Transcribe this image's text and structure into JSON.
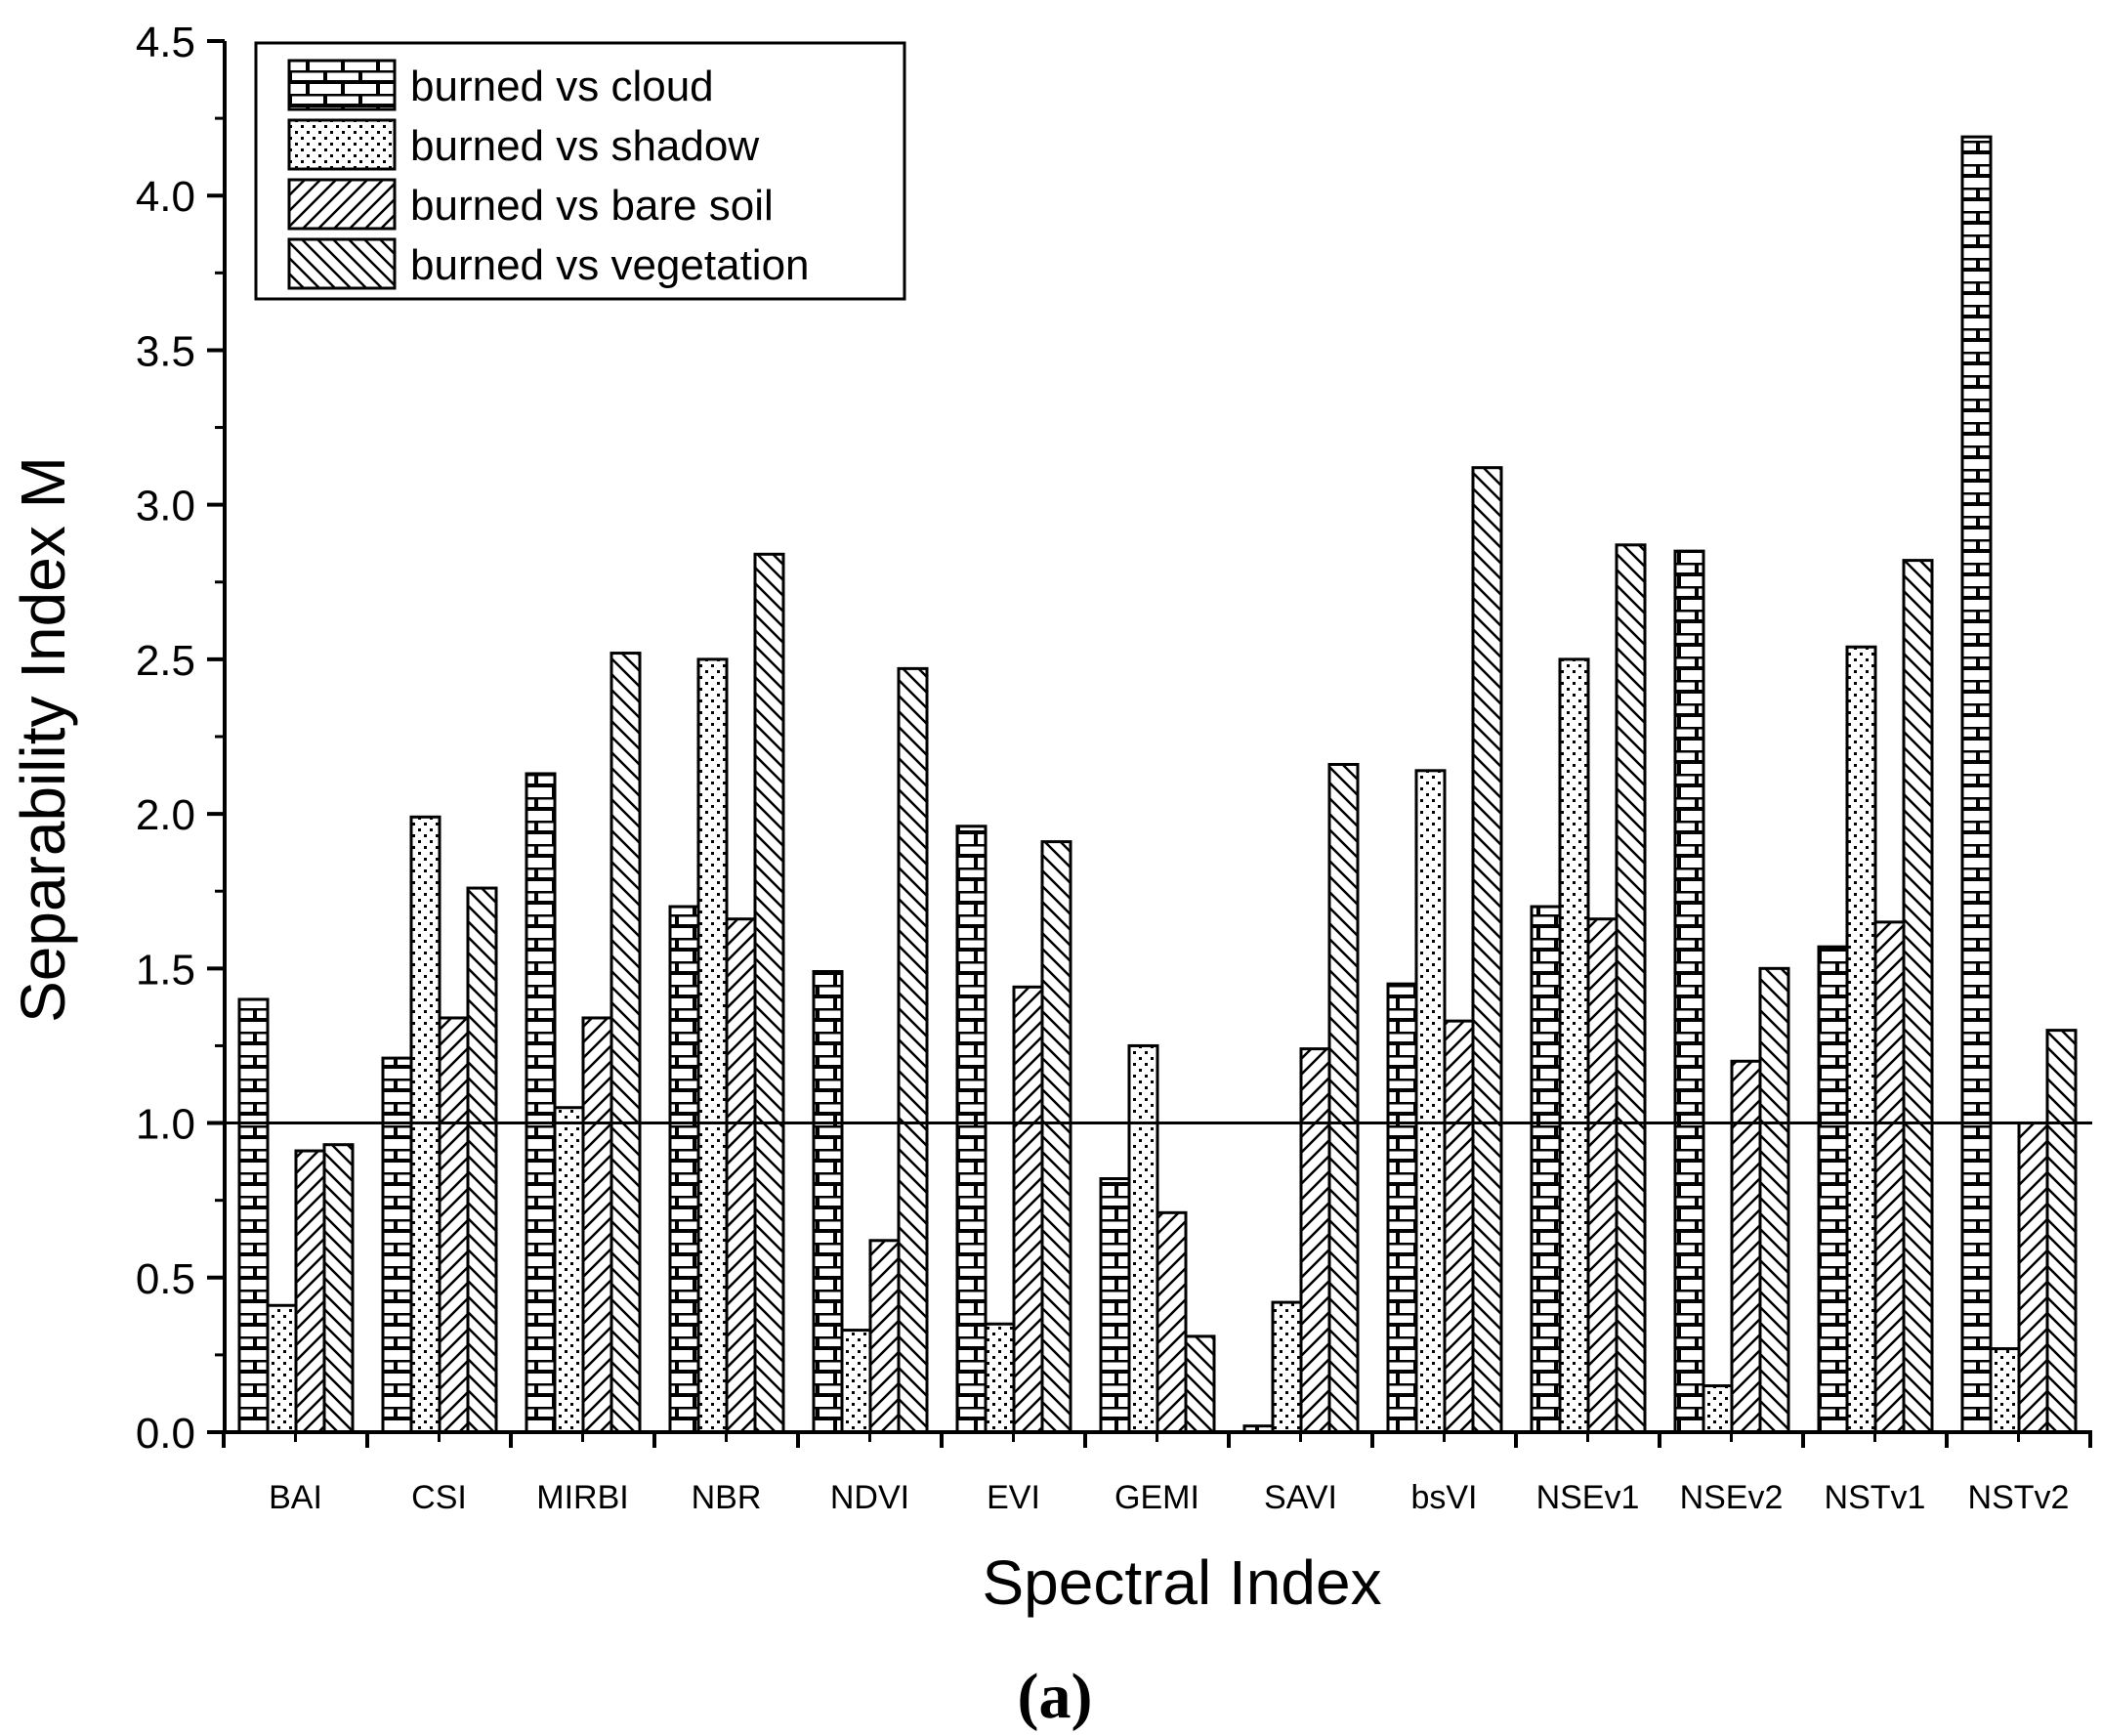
{
  "chart_data": {
    "type": "bar",
    "title": "",
    "xlabel": "Spectral Index",
    "ylabel": "Separability Index M",
    "caption": "(a)",
    "ylim": [
      0,
      4.5
    ],
    "yticks": [
      "0.0",
      "0.5",
      "1.0",
      "1.5",
      "2.0",
      "2.5",
      "3.0",
      "3.5",
      "4.0",
      "4.5"
    ],
    "reference_line": 1.0,
    "legend_position": "top-left",
    "categories": [
      "BAI",
      "CSI",
      "MIRBI",
      "NBR",
      "NDVI",
      "EVI",
      "GEMI",
      "SAVI",
      "bsVI",
      "NSEv1",
      "NSEv2",
      "NSTv1",
      "NSTv2"
    ],
    "series": [
      {
        "name": "burned vs cloud",
        "pattern": "brick",
        "values": [
          1.4,
          1.21,
          2.13,
          1.7,
          1.49,
          1.96,
          0.82,
          0.02,
          1.45,
          1.7,
          2.85,
          1.57,
          4.19
        ]
      },
      {
        "name": "burned vs shadow",
        "pattern": "dots",
        "values": [
          0.41,
          1.99,
          1.05,
          2.5,
          0.33,
          0.35,
          1.25,
          0.42,
          2.14,
          2.5,
          0.15,
          2.54,
          0.27
        ]
      },
      {
        "name": "burned vs bare soil",
        "pattern": "forward-hatch",
        "values": [
          0.91,
          1.34,
          1.34,
          1.66,
          0.62,
          1.44,
          0.71,
          1.24,
          1.33,
          1.66,
          1.2,
          1.65,
          1.0
        ]
      },
      {
        "name": "burned vs vegetation",
        "pattern": "back-hatch",
        "values": [
          0.93,
          1.76,
          2.52,
          2.84,
          2.47,
          1.91,
          0.31,
          2.16,
          3.12,
          2.87,
          1.5,
          2.82,
          1.3
        ]
      }
    ]
  }
}
